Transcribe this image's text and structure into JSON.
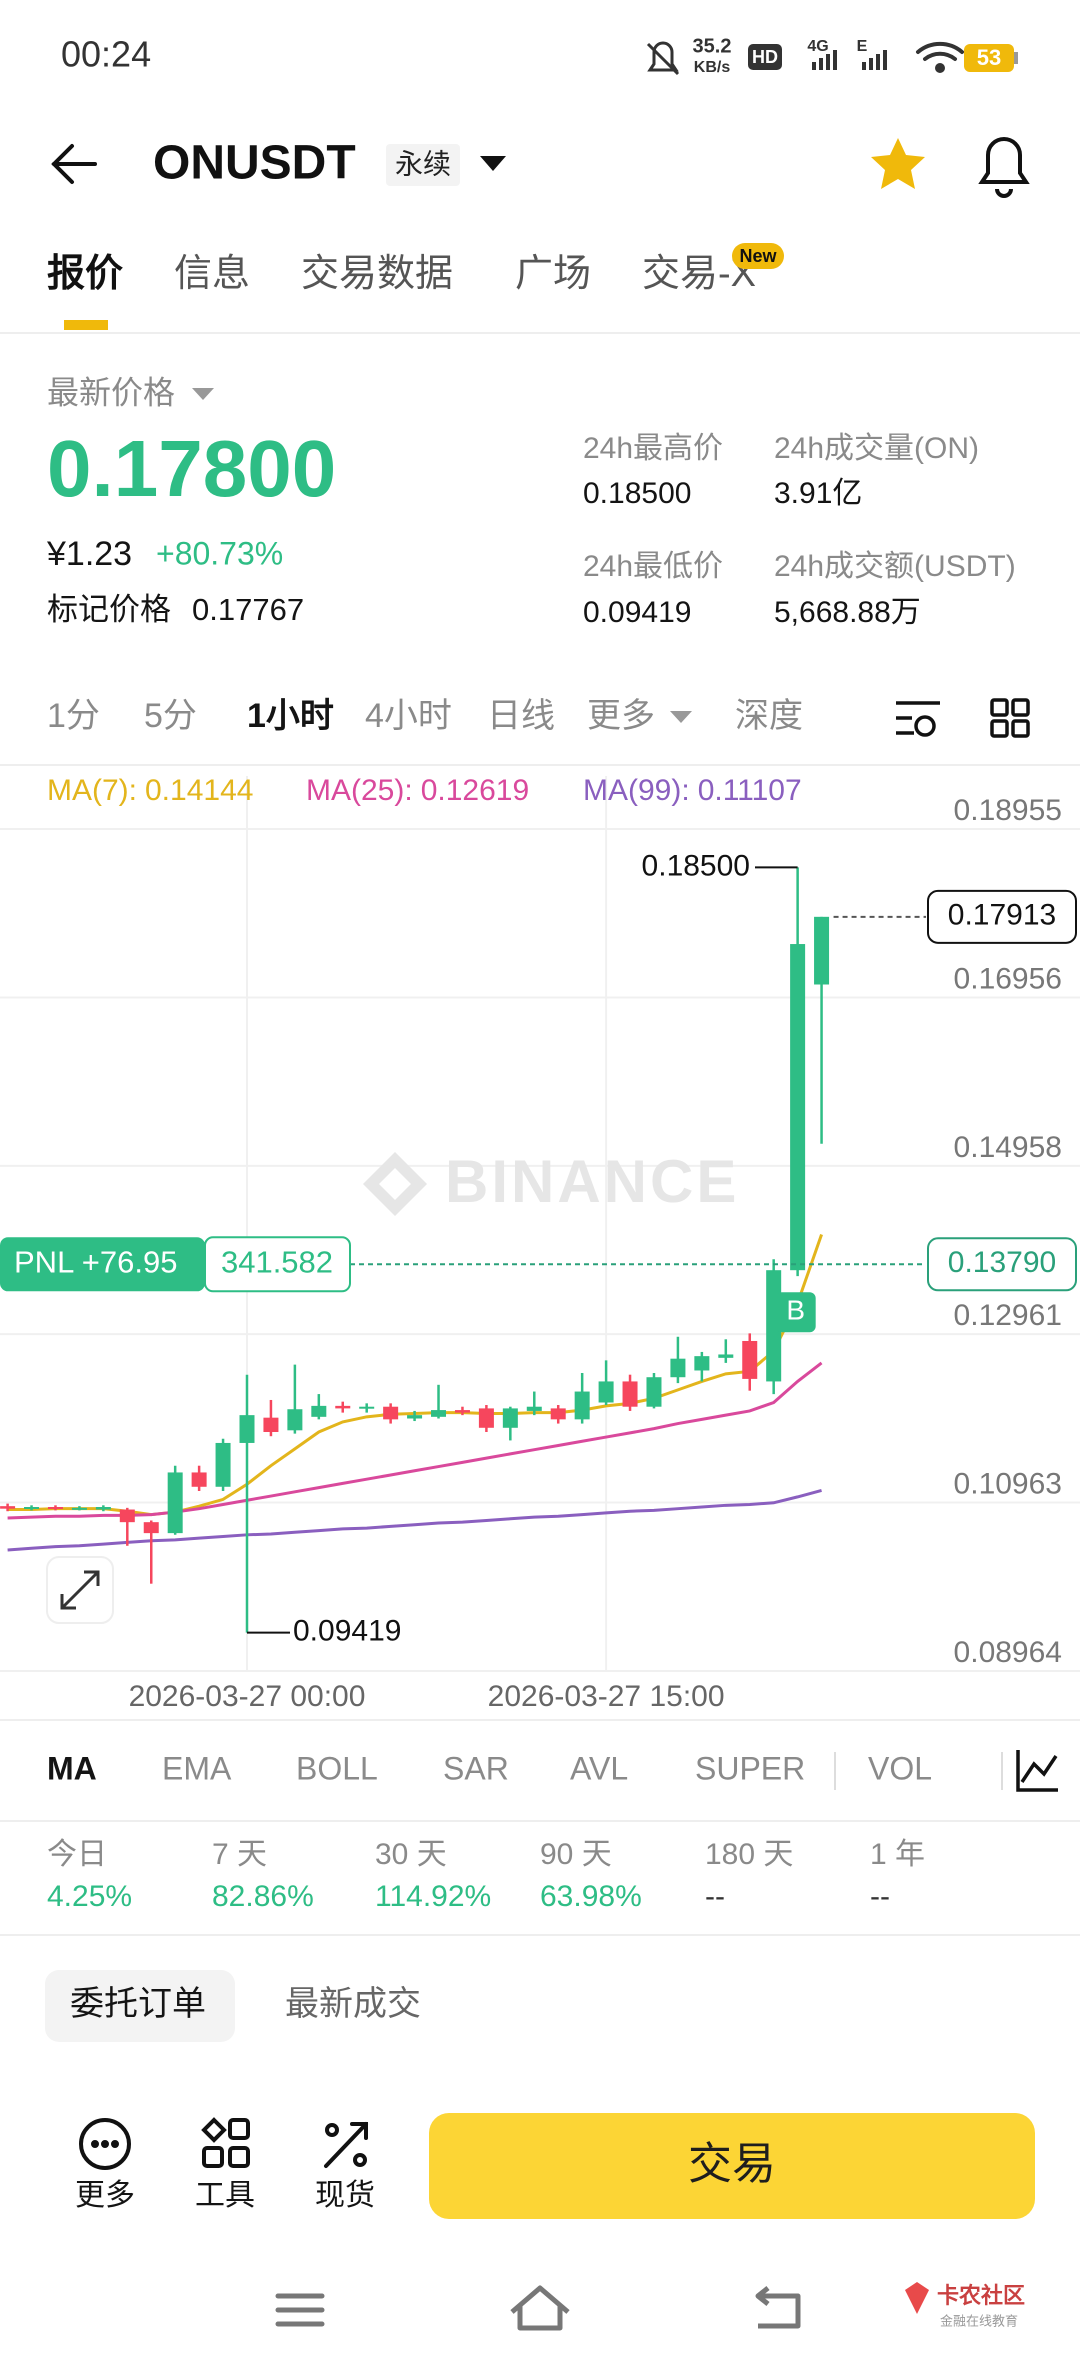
{
  "status_bar": {
    "time": "00:24",
    "speed": "35.2",
    "speed_unit": "KB/s",
    "hd": "HD",
    "net1": "4G",
    "net2": "E",
    "battery": "53"
  },
  "header": {
    "symbol": "ONUSDT",
    "badge": "永续"
  },
  "tabs": [
    "报价",
    "信息",
    "交易数据",
    "广场",
    "交易-X"
  ],
  "new_badge": "New",
  "price": {
    "label": "最新价格",
    "last": "0.17800",
    "cny": "¥1.23",
    "change": "+80.73%",
    "mark_label": "标记价格",
    "mark": "0.17767"
  },
  "stats": [
    {
      "label": "24h最高价",
      "value": "0.18500"
    },
    {
      "label": "24h成交量(ON)",
      "value": "3.91亿"
    },
    {
      "label": "24h最低价",
      "value": "0.09419"
    },
    {
      "label": "24h成交额(USDT)",
      "value": "5,668.88万"
    }
  ],
  "intervals": [
    "1分",
    "5分",
    "1小时",
    "4小时",
    "日线",
    "更多",
    "深度"
  ],
  "chart_data": {
    "type": "candlestick",
    "watermark": "BINANCE",
    "up_color": "#2ebd85",
    "down_color": "#f6465d",
    "candles": {
      "open": [
        0.1092,
        0.1089,
        0.1091,
        0.1089,
        0.1088,
        0.1088,
        0.1073,
        0.106,
        0.1132,
        0.1115,
        0.1167,
        0.1197,
        0.1182,
        0.1198,
        0.1211,
        0.1208,
        0.121,
        0.1196,
        0.1198,
        0.1206,
        0.1208,
        0.1185,
        0.1205,
        0.1208,
        0.1195,
        0.1215,
        0.124,
        0.121,
        0.1245,
        0.1253,
        0.1268,
        0.1288,
        0.124,
        0.1372,
        0.1711
      ],
      "high": [
        0.1095,
        0.1093,
        0.1093,
        0.1092,
        0.1093,
        0.109,
        0.1075,
        0.114,
        0.114,
        0.1172,
        0.1248,
        0.1218,
        0.126,
        0.1225,
        0.1216,
        0.1214,
        0.1214,
        0.1205,
        0.1236,
        0.121,
        0.1212,
        0.121,
        0.1228,
        0.1212,
        0.125,
        0.1265,
        0.1248,
        0.125,
        0.1293,
        0.1275,
        0.129,
        0.1297,
        0.1385,
        0.185,
        0.17913
      ],
      "low": [
        0.1086,
        0.1087,
        0.1087,
        0.1087,
        0.1086,
        0.1045,
        0.1,
        0.1058,
        0.111,
        0.111,
        0.09419,
        0.1175,
        0.1178,
        0.1195,
        0.1203,
        0.1203,
        0.119,
        0.1193,
        0.1196,
        0.12,
        0.118,
        0.117,
        0.12,
        0.119,
        0.119,
        0.1212,
        0.1205,
        0.1208,
        0.1238,
        0.124,
        0.1262,
        0.1229,
        0.1225,
        0.1365,
        0.1522
      ],
      "close": [
        0.1089,
        0.1091,
        0.1089,
        0.109,
        0.1091,
        0.1073,
        0.106,
        0.1132,
        0.1115,
        0.1167,
        0.12,
        0.118,
        0.1207,
        0.1211,
        0.1208,
        0.121,
        0.1195,
        0.12,
        0.1206,
        0.1203,
        0.1185,
        0.1208,
        0.121,
        0.1195,
        0.1228,
        0.124,
        0.121,
        0.1245,
        0.1267,
        0.127,
        0.1272,
        0.1243,
        0.1372,
        0.1759,
        0.17913
      ]
    },
    "series": [
      {
        "name": "MA(7):",
        "color": "#e3b51c",
        "values": [
          0.1088,
          0.1088,
          0.1089,
          0.1089,
          0.1089,
          0.1086,
          0.1082,
          0.1085,
          0.1092,
          0.11,
          0.1118,
          0.114,
          0.116,
          0.118,
          0.1192,
          0.1198,
          0.1201,
          0.1202,
          0.1203,
          0.1203,
          0.1202,
          0.1202,
          0.1203,
          0.1203,
          0.1206,
          0.1211,
          0.1214,
          0.122,
          0.123,
          0.124,
          0.1249,
          0.1252,
          0.1276,
          0.1333,
          0.14144
        ]
      },
      {
        "name": "MA(25):",
        "color": "#d9499c",
        "values": [
          0.1078,
          0.1079,
          0.108,
          0.108,
          0.1081,
          0.1081,
          0.1082,
          0.1085,
          0.1089,
          0.1094,
          0.1099,
          0.1104,
          0.1109,
          0.1114,
          0.1119,
          0.1124,
          0.1129,
          0.1134,
          0.1139,
          0.1144,
          0.1149,
          0.1154,
          0.1159,
          0.1164,
          0.1169,
          0.1174,
          0.1179,
          0.1184,
          0.119,
          0.1195,
          0.12,
          0.1205,
          0.1215,
          0.124,
          0.12619
        ]
      },
      {
        "name": "MA(99):",
        "color": "#8a5fbf",
        "values": [
          0.104,
          0.1042,
          0.1044,
          0.1045,
          0.1047,
          0.1049,
          0.1051,
          0.1052,
          0.1054,
          0.1056,
          0.1058,
          0.1059,
          0.1061,
          0.1063,
          0.1065,
          0.1066,
          0.1068,
          0.107,
          0.1072,
          0.1073,
          0.1075,
          0.1077,
          0.1079,
          0.108,
          0.1082,
          0.1084,
          0.1086,
          0.1087,
          0.1089,
          0.1091,
          0.1093,
          0.1094,
          0.1096,
          0.1103,
          0.11107
        ]
      }
    ],
    "ylim": [
      0.08964,
      0.19584
    ],
    "yticks": [
      0.18955,
      0.16956,
      0.14958,
      0.12961,
      0.10963,
      0.08964
    ],
    "grid": true,
    "x_labels": [
      "2026-03-27 00:00",
      "2026-03-27 15:00"
    ],
    "high_label": "0.18500",
    "low_label": "0.09419",
    "entry": {
      "value": 0.1379,
      "label": "0.13790"
    },
    "pnl": "PNL +76.95",
    "pnl_qty": "341.582",
    "buy_marker": "B"
  },
  "indicators": [
    "MA",
    "EMA",
    "BOLL",
    "SAR",
    "AVL",
    "SUPER",
    "VOL"
  ],
  "performance": [
    {
      "label": "今日",
      "value": "4.25%"
    },
    {
      "label": "7 天",
      "value": "82.86%"
    },
    {
      "label": "30 天",
      "value": "114.92%"
    },
    {
      "label": "90 天",
      "value": "63.98%"
    },
    {
      "label": "180 天",
      "value": "--"
    },
    {
      "label": "1 年",
      "value": "--"
    }
  ],
  "order_tabs": [
    "委托订单",
    "最新成交"
  ],
  "bottom": {
    "more": "更多",
    "tools": "工具",
    "spot": "现货",
    "trade": "交易"
  },
  "corner_logo": {
    "name": "卡农社区",
    "sub": "金融在线教育"
  }
}
